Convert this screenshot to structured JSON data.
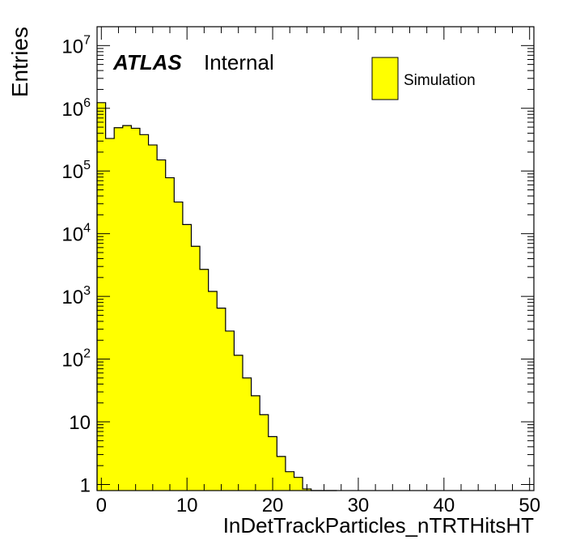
{
  "chart_data": {
    "type": "bar",
    "ylabel": "Entries",
    "xlabel": "InDetTrackParticles_nTRTHitsHT",
    "xlim": [
      -0.5,
      50.5
    ],
    "ylim": [
      0.8,
      20000000
    ],
    "y_scale": "log",
    "x_ticks": [
      0,
      10,
      20,
      30,
      40,
      50
    ],
    "x_tick_labels": [
      "0",
      "10",
      "20",
      "30",
      "40",
      "50"
    ],
    "y_ticks": [
      {
        "value": 1,
        "base": "1",
        "exp": ""
      },
      {
        "value": 10,
        "base": "10",
        "exp": ""
      },
      {
        "value": 100,
        "base": "10",
        "exp": "2"
      },
      {
        "value": 1000,
        "base": "10",
        "exp": "3"
      },
      {
        "value": 10000,
        "base": "10",
        "exp": "4"
      },
      {
        "value": 100000,
        "base": "10",
        "exp": "5"
      },
      {
        "value": 1000000,
        "base": "10",
        "exp": "6"
      },
      {
        "value": 10000000,
        "base": "10",
        "exp": "7"
      }
    ],
    "bin_width": 1,
    "bin_start": -0.5,
    "values": [
      1230000,
      330000,
      490000,
      530000,
      480000,
      380000,
      260000,
      150000,
      78000,
      32000,
      14000,
      6300,
      2700,
      1200,
      650,
      280,
      115,
      50,
      26,
      13,
      5.8,
      2.8,
      1.6,
      1.3,
      0.85,
      0.5,
      0.3,
      0.25
    ],
    "series": [
      {
        "name": "Simulation",
        "fill": "#ffff00",
        "stroke": "#000000"
      }
    ],
    "legend_position": "top-right",
    "annotation": {
      "atlas": "ATLAS",
      "label": "Internal"
    },
    "grid": false
  }
}
